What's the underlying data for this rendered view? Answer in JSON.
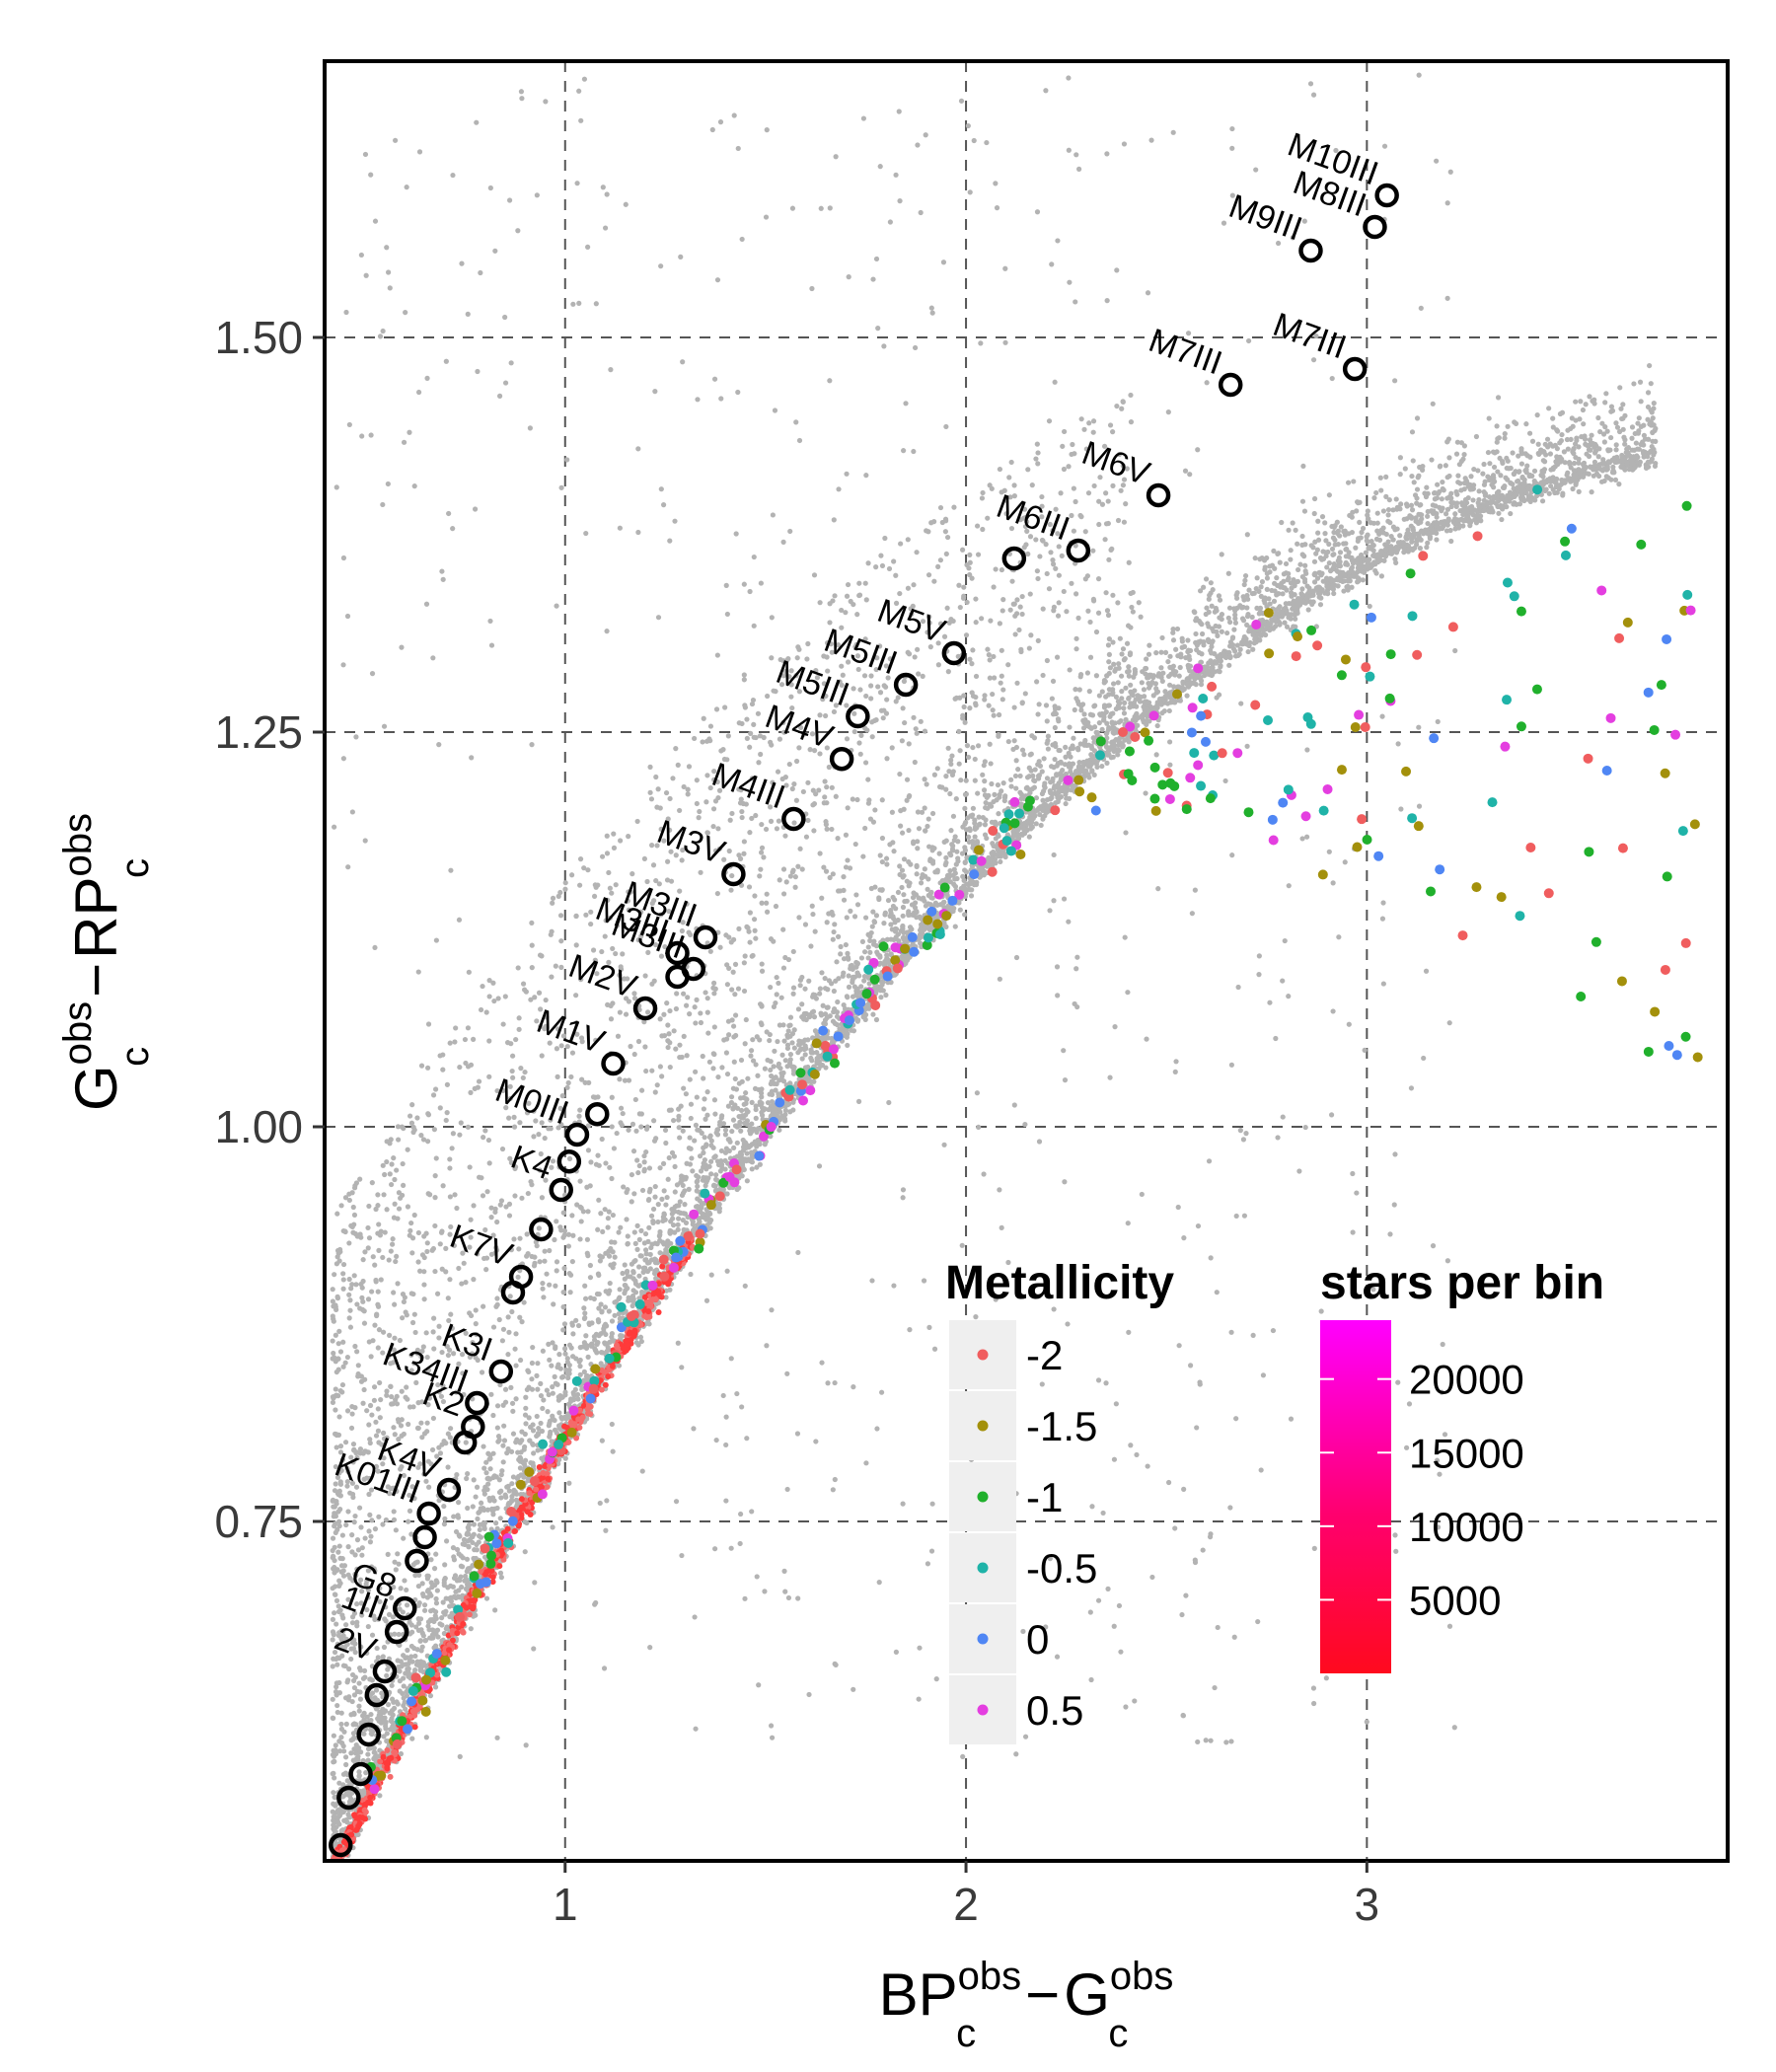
{
  "chart_data": {
    "type": "scatter",
    "title": "",
    "xlabel": {
      "main": "BP",
      "sup1": "obs",
      "sub1": "c",
      "minus": "−",
      "main2": "G",
      "sup2": "obs",
      "sub2": "c"
    },
    "ylabel": {
      "main": "G",
      "sup1": "obs",
      "sub1": "c",
      "minus": "−",
      "main2": "RP",
      "sup2": "obs",
      "sub2": "c"
    },
    "xlim": [
      0.4,
      3.9
    ],
    "ylim": [
      0.535,
      1.675
    ],
    "x_ticks": [
      1,
      2,
      3
    ],
    "x_tick_labels": [
      "1",
      "2",
      "3"
    ],
    "y_ticks": [
      0.75,
      1.0,
      1.25,
      1.5
    ],
    "y_tick_labels": [
      "0.75",
      "1.00",
      "1.25",
      "1.50"
    ],
    "grid": true,
    "density_legend": {
      "title": "stars per bin",
      "range": [
        0,
        24000
      ],
      "tick_values": [
        5000,
        10000,
        15000,
        20000
      ],
      "tick_labels": [
        "5000",
        "10000",
        "15000",
        "20000"
      ],
      "colors": [
        "#ff0a1e",
        "#ff00ff"
      ]
    },
    "metallicity_legend": {
      "title": "Metallicity",
      "entries": [
        {
          "label": "-2",
          "color": "#f05d5e"
        },
        {
          "label": "-1.5",
          "color": "#a3900b"
        },
        {
          "label": "-1",
          "color": "#20b02c"
        },
        {
          "label": "-0.5",
          "color": "#1fb3a8"
        },
        {
          "label": "0",
          "color": "#4f86f4"
        },
        {
          "label": "0.5",
          "color": "#e43ee0"
        }
      ]
    },
    "background_color": "#b3b3b3",
    "reference_stars": [
      {
        "label": "M10III",
        "x": 3.05,
        "y": 1.59
      },
      {
        "label": "M8III",
        "x": 3.02,
        "y": 1.57
      },
      {
        "label": "M9III",
        "x": 2.86,
        "y": 1.555
      },
      {
        "label": "M7III",
        "x": 2.66,
        "y": 1.47
      },
      {
        "label": "M7III",
        "x": 2.97,
        "y": 1.48
      },
      {
        "label": "M6V",
        "x": 2.48,
        "y": 1.4
      },
      {
        "label": "M6III",
        "x": 2.28,
        "y": 1.365
      },
      {
        "label": "",
        "x": 2.12,
        "y": 1.36
      },
      {
        "label": "M5V",
        "x": 1.97,
        "y": 1.3
      },
      {
        "label": "M5III",
        "x": 1.85,
        "y": 1.28
      },
      {
        "label": "M5III",
        "x": 1.73,
        "y": 1.26
      },
      {
        "label": "M4V",
        "x": 1.69,
        "y": 1.233
      },
      {
        "label": "M4III",
        "x": 1.57,
        "y": 1.195
      },
      {
        "label": "M3V",
        "x": 1.42,
        "y": 1.16
      },
      {
        "label": "M3III",
        "x": 1.35,
        "y": 1.12
      },
      {
        "label": "M3III",
        "x": 1.28,
        "y": 1.11
      },
      {
        "label": "M3III",
        "x": 1.32,
        "y": 1.1
      },
      {
        "label": "",
        "x": 1.28,
        "y": 1.095
      },
      {
        "label": "M2V",
        "x": 1.2,
        "y": 1.075
      },
      {
        "label": "M1V",
        "x": 1.12,
        "y": 1.04
      },
      {
        "label": "",
        "x": 1.08,
        "y": 1.008
      },
      {
        "label": "M0III",
        "x": 1.03,
        "y": 0.995
      },
      {
        "label": "",
        "x": 1.01,
        "y": 0.978
      },
      {
        "label": "K4",
        "x": 0.99,
        "y": 0.96
      },
      {
        "label": "",
        "x": 0.94,
        "y": 0.935
      },
      {
        "label": "K7V",
        "x": 0.89,
        "y": 0.905
      },
      {
        "label": "",
        "x": 0.87,
        "y": 0.895
      },
      {
        "label": "K3I",
        "x": 0.84,
        "y": 0.845
      },
      {
        "label": "K34III",
        "x": 0.78,
        "y": 0.825
      },
      {
        "label": "K2",
        "x": 0.77,
        "y": 0.81
      },
      {
        "label": "",
        "x": 0.75,
        "y": 0.8
      },
      {
        "label": "K4V",
        "x": 0.71,
        "y": 0.77
      },
      {
        "label": "K01III",
        "x": 0.66,
        "y": 0.755
      },
      {
        "label": "",
        "x": 0.65,
        "y": 0.74
      },
      {
        "label": "",
        "x": 0.63,
        "y": 0.725
      },
      {
        "label": "G8",
        "x": 0.6,
        "y": 0.695
      },
      {
        "label": "1III",
        "x": 0.58,
        "y": 0.68
      },
      {
        "label": "2V",
        "x": 0.55,
        "y": 0.655
      },
      {
        "label": "",
        "x": 0.53,
        "y": 0.64
      },
      {
        "label": "",
        "x": 0.51,
        "y": 0.615
      },
      {
        "label": "",
        "x": 0.49,
        "y": 0.59
      },
      {
        "label": "",
        "x": 0.46,
        "y": 0.575
      },
      {
        "label": "",
        "x": 0.44,
        "y": 0.545
      }
    ]
  }
}
